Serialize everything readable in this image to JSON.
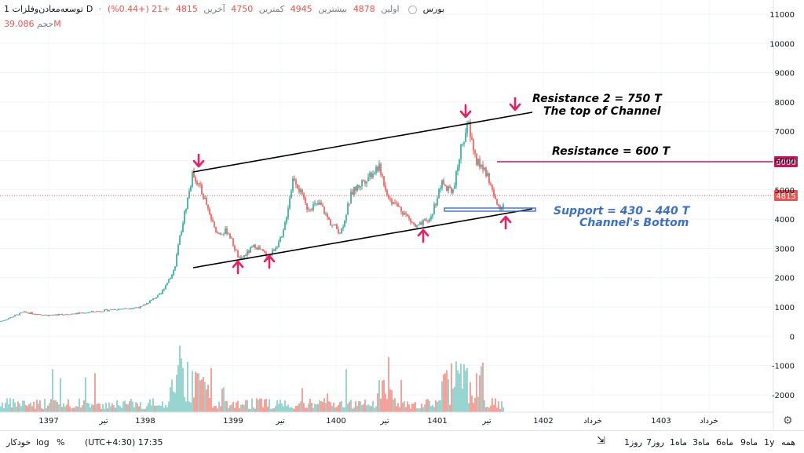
{
  "header": {
    "symbol": "توسعه‌معادن‌وفلزات",
    "interval": "1D",
    "exchange": "بورس",
    "open_label": "اولین",
    "open_value": "4878",
    "high_label": "بیشترین",
    "high_value": "4945",
    "low_label": "کمترین",
    "low_value": "4750",
    "close_label": "آخرین",
    "close_value": "4815",
    "change": "+21 (+0.44%)",
    "volume_label": "حجم",
    "volume_value": "39.086M"
  },
  "colors": {
    "up": "#26a69a",
    "down": "#ef5350",
    "volume_up": "#80cbc4",
    "volume_down": "#f28b82",
    "channel": "#000000",
    "resistance": "#c2185b",
    "support": "#3d6fc4",
    "arrow": "#e91e63"
  },
  "annotations": {
    "resistance2_line1": "Resistance 2 = 750 T",
    "resistance2_line2": "The top of Channel",
    "resistance1": "Resistance = 600 T",
    "support_line1": "Support = 430 - 440 T",
    "support_line2": "Channel's Bottom"
  },
  "price_badges": {
    "resistance": "6000",
    "last": "4815"
  },
  "bottom_bar": {
    "ranges": [
      "همه",
      "1y",
      "9ماه",
      "6ماه",
      "3ماه",
      "1ماه",
      "7روز",
      "1روز"
    ],
    "timezone": "(UTC+4:30) 17:35",
    "percent": "%",
    "log": "log",
    "auto": "خودکار"
  },
  "chart_data": {
    "type": "candlestick",
    "y_axis_ticks": [
      -2000,
      -1000,
      0,
      1000,
      2000,
      3000,
      4000,
      5000,
      6000,
      7000,
      8000,
      9000,
      10000,
      11000
    ],
    "x_axis_ticks": [
      "1397",
      "تیر",
      "1398",
      "1399",
      "تیر",
      "1400",
      "تیر",
      "1401",
      "تیر",
      "1402",
      "خرداد",
      "1403",
      "خرداد"
    ],
    "last_price": 4815,
    "resistance_level": 6000,
    "support_band": [
      4300,
      4400
    ],
    "channel_top": {
      "start": {
        "date": "1398",
        "price": 5600
      },
      "end": {
        "date": "1401",
        "price": 7600
      }
    },
    "channel_bottom": {
      "start": {
        "date": "1398",
        "price": 2400
      },
      "end": {
        "date": "1401",
        "price": 4400
      }
    },
    "price_path": [
      {
        "t": "start",
        "price": 500
      },
      {
        "t": "1397",
        "price": 800
      },
      {
        "t": "1398",
        "price": 1000
      },
      {
        "t": "1398 late",
        "price": 1500
      },
      {
        "t": "peak",
        "price": 5600
      },
      {
        "t": "1399",
        "price": 2600
      },
      {
        "t": "1399 تیر",
        "price": 2700
      },
      {
        "t": "1400",
        "price": 5500
      },
      {
        "t": "1400",
        "price": 3700
      },
      {
        "t": "1400 تیر",
        "price": 5800
      },
      {
        "t": "1401",
        "price": 3700
      },
      {
        "t": "1401 تیر",
        "price": 7200
      },
      {
        "t": "latest",
        "price": 4815
      }
    ]
  }
}
